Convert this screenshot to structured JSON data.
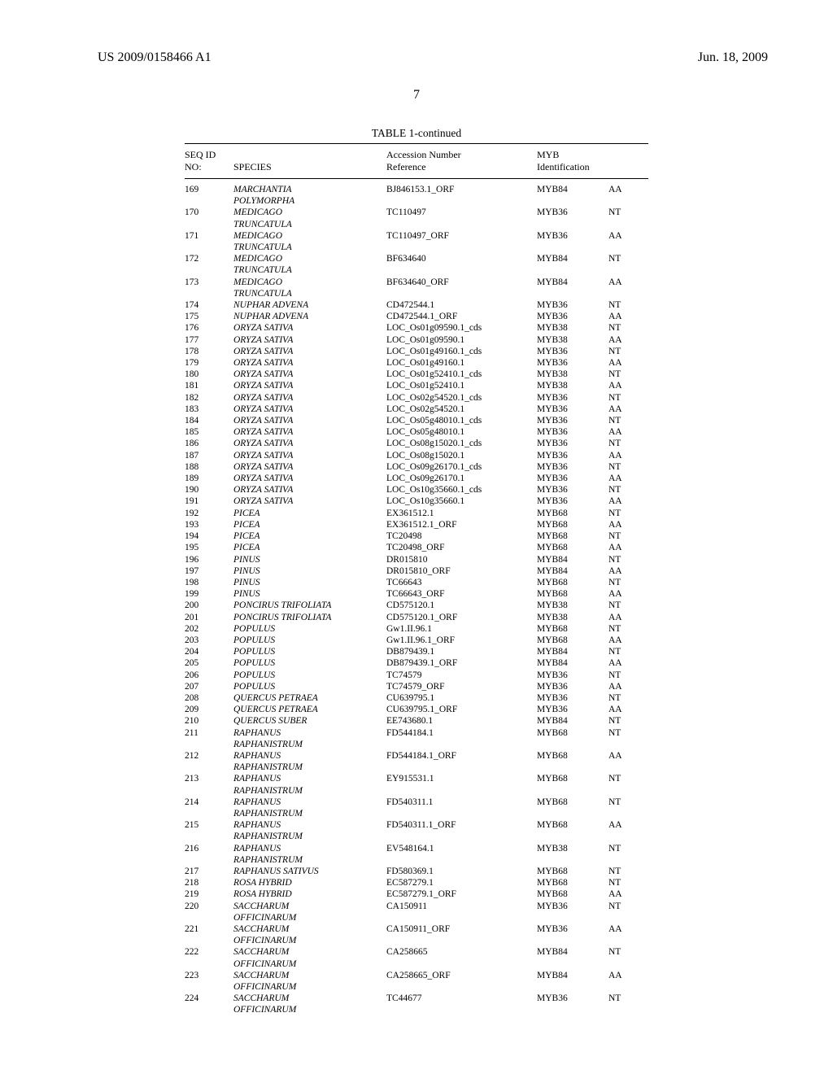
{
  "header": {
    "left": "US 2009/0158466 A1",
    "right": "Jun. 18, 2009"
  },
  "page_number": "7",
  "table": {
    "title": "TABLE 1-continued",
    "columns": {
      "seq_l1": "SEQ ID",
      "seq_l2": "NO:",
      "species": "SPECIES",
      "acc_l1": "Accession Number",
      "acc_l2": "Reference",
      "myb_l1": "MYB",
      "myb_l2": "Identification",
      "type": ""
    },
    "rows": [
      {
        "seq": "169",
        "species_lines": [
          "MARCHANTIA",
          "POLYMORPHA"
        ],
        "acc": "BJ846153.1_ORF",
        "myb": "MYB84",
        "type": "AA"
      },
      {
        "seq": "170",
        "species_lines": [
          "MEDICAGO",
          "TRUNCATULA"
        ],
        "acc": "TC110497",
        "myb": "MYB36",
        "type": "NT"
      },
      {
        "seq": "171",
        "species_lines": [
          "MEDICAGO",
          "TRUNCATULA"
        ],
        "acc": "TC110497_ORF",
        "myb": "MYB36",
        "type": "AA"
      },
      {
        "seq": "172",
        "species_lines": [
          "MEDICAGO",
          "TRUNCATULA"
        ],
        "acc": "BF634640",
        "myb": "MYB84",
        "type": "NT"
      },
      {
        "seq": "173",
        "species_lines": [
          "MEDICAGO",
          "TRUNCATULA"
        ],
        "acc": "BF634640_ORF",
        "myb": "MYB84",
        "type": "AA"
      },
      {
        "seq": "174",
        "species_lines": [
          "NUPHAR ADVENA"
        ],
        "acc": "CD472544.1",
        "myb": "MYB36",
        "type": "NT"
      },
      {
        "seq": "175",
        "species_lines": [
          "NUPHAR ADVENA"
        ],
        "acc": "CD472544.1_ORF",
        "myb": "MYB36",
        "type": "AA"
      },
      {
        "seq": "176",
        "species_lines": [
          "ORYZA SATIVA"
        ],
        "acc": "LOC_Os01g09590.1_cds",
        "myb": "MYB38",
        "type": "NT"
      },
      {
        "seq": "177",
        "species_lines": [
          "ORYZA SATIVA"
        ],
        "acc": "LOC_Os01g09590.1",
        "myb": "MYB38",
        "type": "AA"
      },
      {
        "seq": "178",
        "species_lines": [
          "ORYZA SATIVA"
        ],
        "acc": "LOC_Os01g49160.1_cds",
        "myb": "MYB36",
        "type": "NT"
      },
      {
        "seq": "179",
        "species_lines": [
          "ORYZA SATIVA"
        ],
        "acc": "LOC_Os01g49160.1",
        "myb": "MYB36",
        "type": "AA"
      },
      {
        "seq": "180",
        "species_lines": [
          "ORYZA SATIVA"
        ],
        "acc": "LOC_Os01g52410.1_cds",
        "myb": "MYB38",
        "type": "NT"
      },
      {
        "seq": "181",
        "species_lines": [
          "ORYZA SATIVA"
        ],
        "acc": "LOC_Os01g52410.1",
        "myb": "MYB38",
        "type": "AA"
      },
      {
        "seq": "182",
        "species_lines": [
          "ORYZA SATIVA"
        ],
        "acc": "LOC_Os02g54520.1_cds",
        "myb": "MYB36",
        "type": "NT"
      },
      {
        "seq": "183",
        "species_lines": [
          "ORYZA SATIVA"
        ],
        "acc": "LOC_Os02g54520.1",
        "myb": "MYB36",
        "type": "AA"
      },
      {
        "seq": "184",
        "species_lines": [
          "ORYZA SATIVA"
        ],
        "acc": "LOC_Os05g48010.1_cds",
        "myb": "MYB36",
        "type": "NT"
      },
      {
        "seq": "185",
        "species_lines": [
          "ORYZA SATIVA"
        ],
        "acc": "LOC_Os05g48010.1",
        "myb": "MYB36",
        "type": "AA"
      },
      {
        "seq": "186",
        "species_lines": [
          "ORYZA SATIVA"
        ],
        "acc": "LOC_Os08g15020.1_cds",
        "myb": "MYB36",
        "type": "NT"
      },
      {
        "seq": "187",
        "species_lines": [
          "ORYZA SATIVA"
        ],
        "acc": "LOC_Os08g15020.1",
        "myb": "MYB36",
        "type": "AA"
      },
      {
        "seq": "188",
        "species_lines": [
          "ORYZA SATIVA"
        ],
        "acc": "LOC_Os09g26170.1_cds",
        "myb": "MYB36",
        "type": "NT"
      },
      {
        "seq": "189",
        "species_lines": [
          "ORYZA SATIVA"
        ],
        "acc": "LOC_Os09g26170.1",
        "myb": "MYB36",
        "type": "AA"
      },
      {
        "seq": "190",
        "species_lines": [
          "ORYZA SATIVA"
        ],
        "acc": "LOC_Os10g35660.1_cds",
        "myb": "MYB36",
        "type": "NT"
      },
      {
        "seq": "191",
        "species_lines": [
          "ORYZA SATIVA"
        ],
        "acc": "LOC_Os10g35660.1",
        "myb": "MYB36",
        "type": "AA"
      },
      {
        "seq": "192",
        "species_lines": [
          "PICEA"
        ],
        "acc": "EX361512.1",
        "myb": "MYB68",
        "type": "NT"
      },
      {
        "seq": "193",
        "species_lines": [
          "PICEA"
        ],
        "acc": "EX361512.1_ORF",
        "myb": "MYB68",
        "type": "AA"
      },
      {
        "seq": "194",
        "species_lines": [
          "PICEA"
        ],
        "acc": "TC20498",
        "myb": "MYB68",
        "type": "NT"
      },
      {
        "seq": "195",
        "species_lines": [
          "PICEA"
        ],
        "acc": "TC20498_ORF",
        "myb": "MYB68",
        "type": "AA"
      },
      {
        "seq": "196",
        "species_lines": [
          "PINUS"
        ],
        "acc": "DR015810",
        "myb": "MYB84",
        "type": "NT"
      },
      {
        "seq": "197",
        "species_lines": [
          "PINUS"
        ],
        "acc": "DR015810_ORF",
        "myb": "MYB84",
        "type": "AA"
      },
      {
        "seq": "198",
        "species_lines": [
          "PINUS"
        ],
        "acc": "TC66643",
        "myb": "MYB68",
        "type": "NT"
      },
      {
        "seq": "199",
        "species_lines": [
          "PINUS"
        ],
        "acc": "TC66643_ORF",
        "myb": "MYB68",
        "type": "AA"
      },
      {
        "seq": "200",
        "species_lines": [
          "PONCIRUS TRIFOLIATA"
        ],
        "acc": "CD575120.1",
        "myb": "MYB38",
        "type": "NT"
      },
      {
        "seq": "201",
        "species_lines": [
          "PONCIRUS TRIFOLIATA"
        ],
        "acc": "CD575120.1_ORF",
        "myb": "MYB38",
        "type": "AA"
      },
      {
        "seq": "202",
        "species_lines": [
          "POPULUS"
        ],
        "acc": "Gw1.II.96.1",
        "myb": "MYB68",
        "type": "NT"
      },
      {
        "seq": "203",
        "species_lines": [
          "POPULUS"
        ],
        "acc": "Gw1.II.96.1_ORF",
        "myb": "MYB68",
        "type": "AA"
      },
      {
        "seq": "204",
        "species_lines": [
          "POPULUS"
        ],
        "acc": "DB879439.1",
        "myb": "MYB84",
        "type": "NT"
      },
      {
        "seq": "205",
        "species_lines": [
          "POPULUS"
        ],
        "acc": "DB879439.1_ORF",
        "myb": "MYB84",
        "type": "AA"
      },
      {
        "seq": "206",
        "species_lines": [
          "POPULUS"
        ],
        "acc": "TC74579",
        "myb": "MYB36",
        "type": "NT"
      },
      {
        "seq": "207",
        "species_lines": [
          "POPULUS"
        ],
        "acc": "TC74579_ORF",
        "myb": "MYB36",
        "type": "AA"
      },
      {
        "seq": "208",
        "species_lines": [
          "QUERCUS PETRAEA"
        ],
        "acc": "CU639795.1",
        "myb": "MYB36",
        "type": "NT"
      },
      {
        "seq": "209",
        "species_lines": [
          "QUERCUS PETRAEA"
        ],
        "acc": "CU639795.1_ORF",
        "myb": "MYB36",
        "type": "AA"
      },
      {
        "seq": "210",
        "species_lines": [
          "QUERCUS SUBER"
        ],
        "acc": "EE743680.1",
        "myb": "MYB84",
        "type": "NT"
      },
      {
        "seq": "211",
        "species_lines": [
          "RAPHANUS",
          "RAPHANISTRUM"
        ],
        "acc": "FD544184.1",
        "myb": "MYB68",
        "type": "NT"
      },
      {
        "seq": "212",
        "species_lines": [
          "RAPHANUS",
          "RAPHANISTRUM"
        ],
        "acc": "FD544184.1_ORF",
        "myb": "MYB68",
        "type": "AA"
      },
      {
        "seq": "213",
        "species_lines": [
          "RAPHANUS",
          "RAPHANISTRUM"
        ],
        "acc": "EY915531.1",
        "myb": "MYB68",
        "type": "NT"
      },
      {
        "seq": "214",
        "species_lines": [
          "RAPHANUS",
          "RAPHANISTRUM"
        ],
        "acc": "FD540311.1",
        "myb": "MYB68",
        "type": "NT"
      },
      {
        "seq": "215",
        "species_lines": [
          "RAPHANUS",
          "RAPHANISTRUM"
        ],
        "acc": "FD540311.1_ORF",
        "myb": "MYB68",
        "type": "AA"
      },
      {
        "seq": "216",
        "species_lines": [
          "RAPHANUS",
          "RAPHANISTRUM"
        ],
        "acc": "EV548164.1",
        "myb": "MYB38",
        "type": "NT"
      },
      {
        "seq": "217",
        "species_lines": [
          "RAPHANUS SATIVUS"
        ],
        "acc": "FD580369.1",
        "myb": "MYB68",
        "type": "NT"
      },
      {
        "seq": "218",
        "species_lines": [
          "ROSA HYBRID"
        ],
        "acc": "EC587279.1",
        "myb": "MYB68",
        "type": "NT"
      },
      {
        "seq": "219",
        "species_lines": [
          "ROSA HYBRID"
        ],
        "acc": "EC587279.1_ORF",
        "myb": "MYB68",
        "type": "AA"
      },
      {
        "seq": "220",
        "species_lines": [
          "SACCHARUM",
          "OFFICINARUM"
        ],
        "acc": "CA150911",
        "myb": "MYB36",
        "type": "NT"
      },
      {
        "seq": "221",
        "species_lines": [
          "SACCHARUM",
          "OFFICINARUM"
        ],
        "acc": "CA150911_ORF",
        "myb": "MYB36",
        "type": "AA"
      },
      {
        "seq": "222",
        "species_lines": [
          "SACCHARUM",
          "OFFICINARUM"
        ],
        "acc": "CA258665",
        "myb": "MYB84",
        "type": "NT"
      },
      {
        "seq": "223",
        "species_lines": [
          "SACCHARUM",
          "OFFICINARUM"
        ],
        "acc": "CA258665_ORF",
        "myb": "MYB84",
        "type": "AA"
      },
      {
        "seq": "224",
        "species_lines": [
          "SACCHARUM",
          "OFFICINARUM"
        ],
        "acc": "TC44677",
        "myb": "MYB36",
        "type": "NT"
      }
    ]
  }
}
